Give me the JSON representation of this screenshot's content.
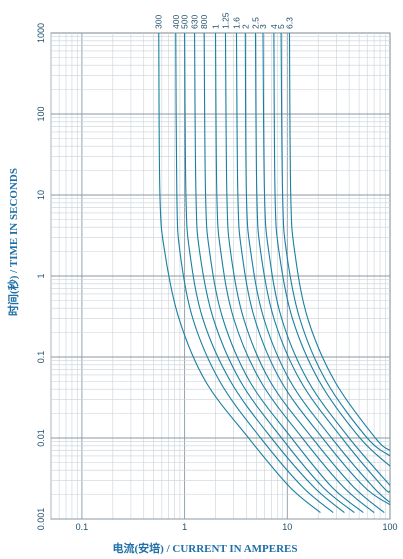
{
  "chart_data": {
    "type": "line",
    "xlabel": "电流(安培) / CURRENT IN AMPERES",
    "ylabel": "时间(秒) / TIME IN SECONDS",
    "xscale": "log",
    "yscale": "log",
    "xlim": [
      0.05,
      100
    ],
    "ylim": [
      0.001,
      1000
    ],
    "grid": true,
    "x_tick_labels": [
      "0.1",
      "1",
      "10",
      "100"
    ],
    "x_ticks": [
      0.1,
      1,
      10,
      100
    ],
    "y_tick_labels": [
      "0.001",
      "0.01",
      "0.1",
      "1",
      "10",
      "100",
      "1000"
    ],
    "y_ticks": [
      0.001,
      0.01,
      0.1,
      1,
      10,
      100,
      1000
    ],
    "series_labels": [
      "300",
      "400",
      "500",
      "630",
      "800",
      "1",
      "1.25",
      "1.6",
      "2",
      "2.5",
      "3",
      "4",
      "5",
      "6.3"
    ],
    "series": [
      {
        "name": "300",
        "x": [
          0.56,
          0.575,
          0.64,
          0.88,
          1.6,
          4.2,
          10.5,
          21
        ],
        "y": [
          1000,
          10,
          2,
          0.3,
          0.05,
          0.01,
          0.0025,
          0.0012
        ]
      },
      {
        "name": "400",
        "x": [
          0.82,
          0.84,
          0.9,
          1.2,
          2.2,
          5.5,
          14,
          28
        ],
        "y": [
          1000,
          10,
          2,
          0.3,
          0.05,
          0.01,
          0.0025,
          0.0012
        ]
      },
      {
        "name": "500",
        "x": [
          1.0,
          1.03,
          1.12,
          1.5,
          2.8,
          7,
          18,
          36
        ],
        "y": [
          1000,
          10,
          2,
          0.3,
          0.05,
          0.01,
          0.0025,
          0.0012
        ]
      },
      {
        "name": "630",
        "x": [
          1.25,
          1.29,
          1.4,
          1.9,
          3.5,
          8.8,
          22,
          45
        ],
        "y": [
          1000,
          10,
          2,
          0.3,
          0.05,
          0.01,
          0.0025,
          0.0012
        ]
      },
      {
        "name": "800",
        "x": [
          1.55,
          1.6,
          1.75,
          2.35,
          4.3,
          11,
          27,
          55
        ],
        "y": [
          1000,
          10,
          2,
          0.3,
          0.05,
          0.01,
          0.0025,
          0.0012
        ]
      },
      {
        "name": "1",
        "x": [
          2.0,
          2.06,
          2.25,
          3.0,
          5.5,
          14,
          35,
          70
        ],
        "y": [
          1000,
          10,
          2,
          0.3,
          0.05,
          0.01,
          0.0025,
          0.0012
        ]
      },
      {
        "name": "1.25",
        "x": [
          2.5,
          2.58,
          2.8,
          3.75,
          6.8,
          17.5,
          44,
          88
        ],
        "y": [
          1000,
          10,
          2,
          0.3,
          0.05,
          0.01,
          0.0025,
          0.0012
        ]
      },
      {
        "name": "1.6",
        "x": [
          3.2,
          3.3,
          3.6,
          4.8,
          8.7,
          22,
          56,
          100
        ],
        "y": [
          1000,
          10,
          2,
          0.3,
          0.05,
          0.01,
          0.0025,
          0.0015
        ]
      },
      {
        "name": "2",
        "x": [
          3.9,
          4.0,
          4.4,
          5.9,
          10.7,
          27,
          68,
          100
        ],
        "y": [
          1000,
          10,
          2,
          0.3,
          0.05,
          0.01,
          0.0025,
          0.0016
        ]
      },
      {
        "name": "2.5",
        "x": [
          4.9,
          5.05,
          5.5,
          7.4,
          13.5,
          34,
          85,
          100
        ],
        "y": [
          1000,
          10,
          2,
          0.3,
          0.05,
          0.01,
          0.0025,
          0.0022
        ]
      },
      {
        "name": "3",
        "x": [
          5.8,
          6.0,
          6.6,
          8.8,
          16,
          40,
          100
        ],
        "y": [
          1000,
          10,
          2,
          0.3,
          0.05,
          0.01,
          0.0026
        ]
      },
      {
        "name": "4",
        "x": [
          7.4,
          7.6,
          8.3,
          11.2,
          20.5,
          51,
          100
        ],
        "y": [
          1000,
          10,
          2,
          0.3,
          0.05,
          0.01,
          0.0045
        ]
      },
      {
        "name": "5",
        "x": [
          8.7,
          9.0,
          9.8,
          13.2,
          24,
          60,
          100
        ],
        "y": [
          1000,
          10,
          2,
          0.3,
          0.05,
          0.01,
          0.006
        ]
      },
      {
        "name": "6.3",
        "x": [
          10.5,
          10.8,
          11.8,
          15.8,
          29,
          72,
          100
        ],
        "y": [
          1000,
          10,
          2,
          0.3,
          0.05,
          0.01,
          0.007
        ]
      }
    ]
  }
}
